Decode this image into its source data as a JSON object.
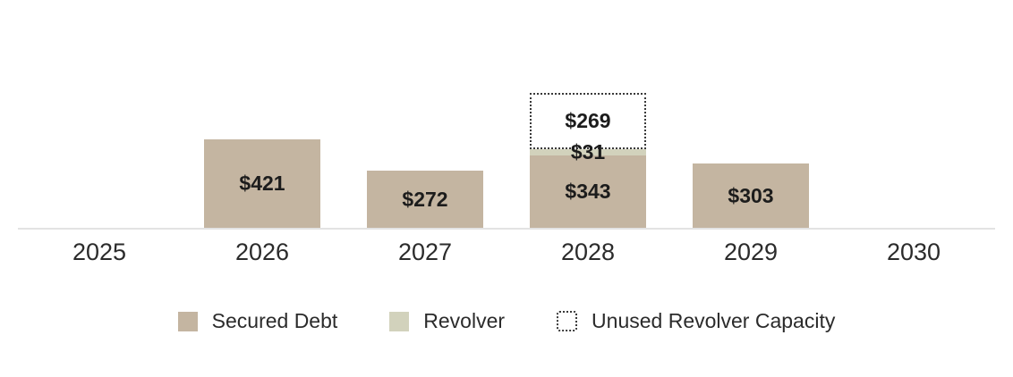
{
  "chart_data": {
    "type": "bar",
    "subtype": "stacked-bar",
    "categories": [
      "2025",
      "2026",
      "2027",
      "2028",
      "2029",
      "2030"
    ],
    "series": [
      {
        "name": "Secured Debt",
        "values": [
          0,
          421,
          272,
          343,
          303,
          0
        ]
      },
      {
        "name": "Revolver",
        "values": [
          0,
          0,
          0,
          31,
          0,
          0
        ]
      },
      {
        "name": "Unused Revolver Capacity",
        "values": [
          0,
          0,
          0,
          269,
          0,
          0
        ]
      }
    ],
    "bars": [
      {
        "category": "2025",
        "segments": []
      },
      {
        "category": "2026",
        "segments": [
          {
            "series": "Secured Debt",
            "value": 421,
            "label": "$421"
          }
        ]
      },
      {
        "category": "2027",
        "segments": [
          {
            "series": "Secured Debt",
            "value": 272,
            "label": "$272"
          }
        ]
      },
      {
        "category": "2028",
        "segments": [
          {
            "series": "Secured Debt",
            "value": 343,
            "label": "$343"
          },
          {
            "series": "Revolver",
            "value": 31,
            "label": "$31"
          },
          {
            "series": "Unused Revolver Capacity",
            "value": 269,
            "label": "$269"
          }
        ]
      },
      {
        "category": "2029",
        "segments": [
          {
            "series": "Secured Debt",
            "value": 303,
            "label": "$303"
          }
        ]
      },
      {
        "category": "2030",
        "segments": []
      }
    ],
    "series_styles": {
      "Secured Debt": {
        "color": "#c4b5a1",
        "outline": false
      },
      "Revolver": {
        "color": "#d2d2bc",
        "outline": false
      },
      "Unused Revolver Capacity": {
        "color": "#ffffff",
        "outline": true,
        "border_color": "#3a3a3a"
      }
    },
    "title": "",
    "xlabel": "",
    "ylabel": "",
    "value_prefix": "$",
    "axis_line_color": "#e3e3e3",
    "grid": false,
    "legend_position": "bottom"
  },
  "legend": {
    "items": [
      {
        "label": "Secured Debt",
        "swatch": "solid",
        "color": "#c4b5a1"
      },
      {
        "label": "Revolver",
        "swatch": "solid",
        "color": "#d2d2bc"
      },
      {
        "label": "Unused Revolver Capacity",
        "swatch": "dotted-outline",
        "color": "#ffffff"
      }
    ]
  }
}
